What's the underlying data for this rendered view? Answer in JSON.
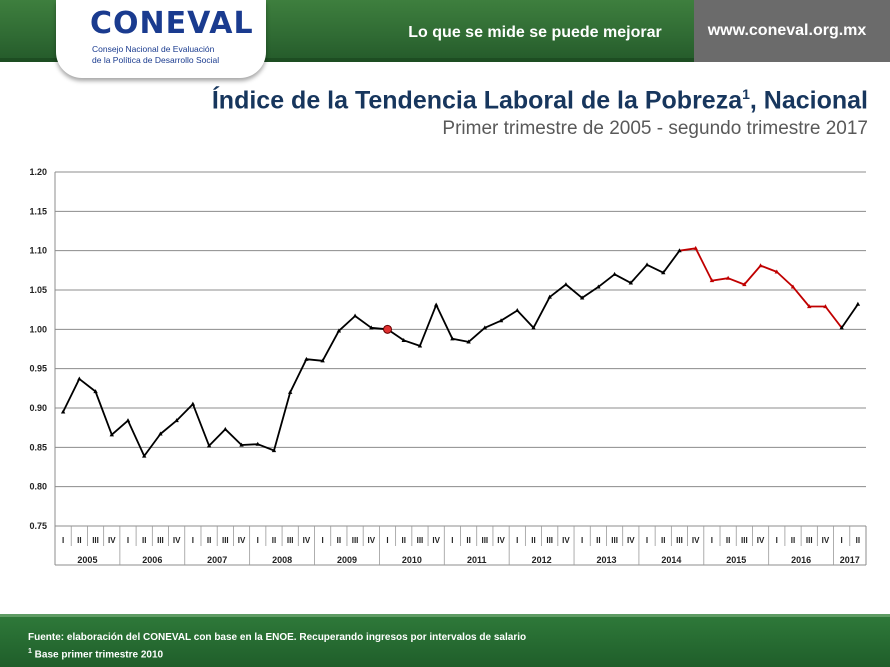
{
  "header": {
    "logo_text": "CONEVAL",
    "logo_sub1": "Consejo Nacional de Evaluación",
    "logo_sub2": "de la Política de Desarrollo Social",
    "slogan": "Lo que se mide se puede mejorar",
    "url": "www.coneval.org.mx"
  },
  "footer": {
    "source": "Fuente: elaboración del CONEVAL con base en la ENOE. Recuperando ingresos  por intervalos de salario",
    "base_mark": "1",
    "base_note": " Base primer trimestre 2010"
  },
  "colors": {
    "header_green": "#2f6a33",
    "title_blue": "#17365d",
    "line_black": "#000000",
    "line_red": "#c00000",
    "marker_red": "#e03030"
  },
  "chart_data": {
    "type": "line",
    "title": "Índice de la Tendencia Laboral de la Pobreza",
    "title_mark": "1",
    "title_suffix": ", Nacional",
    "subtitle": "Primer trimestre de 2005 - segundo trimestre 2017",
    "ylim": [
      0.75,
      1.2
    ],
    "yticks": [
      "0.75",
      "0.80",
      "0.85",
      "0.90",
      "0.95",
      "1.00",
      "1.05",
      "1.10",
      "1.15",
      "1.20"
    ],
    "grid": true,
    "quarter_labels": [
      "I",
      "II",
      "III",
      "IV"
    ],
    "years": [
      "2005",
      "2006",
      "2007",
      "2008",
      "2009",
      "2010",
      "2011",
      "2012",
      "2013",
      "2014",
      "2015",
      "2016",
      "2017"
    ],
    "values": [
      0.895,
      0.937,
      0.921,
      0.866,
      0.884,
      0.839,
      0.867,
      0.884,
      0.905,
      0.852,
      0.873,
      0.853,
      0.854,
      0.846,
      0.92,
      0.962,
      0.96,
      0.998,
      1.017,
      1.002,
      1.0,
      0.986,
      0.979,
      1.031,
      0.988,
      0.984,
      1.002,
      1.011,
      1.024,
      1.002,
      1.041,
      1.057,
      1.04,
      1.054,
      1.07,
      1.059,
      1.082,
      1.072,
      1.1,
      1.103,
      1.062,
      1.065,
      1.057,
      1.081,
      1.073,
      1.054,
      1.029,
      1.029,
      1.002,
      1.032
    ],
    "highlight_index": 20,
    "red_segment": [
      38,
      48
    ]
  }
}
